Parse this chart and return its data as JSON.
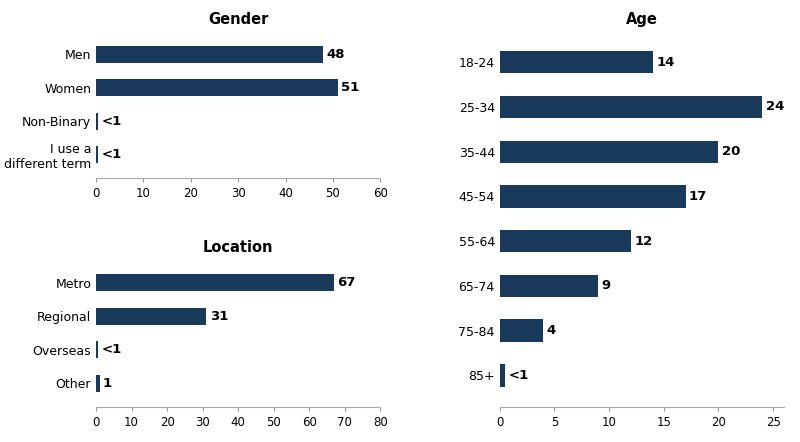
{
  "bar_color": "#1a3a5c",
  "background_color": "#ffffff",
  "title_fontsize": 10.5,
  "label_fontsize": 9,
  "tick_fontsize": 8.5,
  "value_fontsize": 9.5,
  "gender": {
    "title": "Gender",
    "categories": [
      "Men",
      "Women",
      "Non-Binary",
      "I use a\ndifferent term"
    ],
    "values": [
      48,
      51,
      0.5,
      0.5
    ],
    "labels": [
      "48",
      "51",
      "<1",
      "<1"
    ],
    "xlim": [
      0,
      60
    ],
    "xticks": [
      0,
      10,
      20,
      30,
      40,
      50,
      60
    ]
  },
  "location": {
    "title": "Location",
    "categories": [
      "Metro",
      "Regional",
      "Overseas",
      "Other"
    ],
    "values": [
      67,
      31,
      0.5,
      1
    ],
    "labels": [
      "67",
      "31",
      "<1",
      "1"
    ],
    "xlim": [
      0,
      80
    ],
    "xticks": [
      0,
      10,
      20,
      30,
      40,
      50,
      60,
      70,
      80
    ]
  },
  "age": {
    "title": "Age",
    "categories": [
      "18-24",
      "25-34",
      "35-44",
      "45-54",
      "55-64",
      "65-74",
      "75-84",
      "85+"
    ],
    "values": [
      14,
      24,
      20,
      17,
      12,
      9,
      4,
      0.5
    ],
    "labels": [
      "14",
      "24",
      "20",
      "17",
      "12",
      "9",
      "4",
      "<1"
    ],
    "xlim": [
      0,
      26
    ],
    "xticks": [
      0,
      5,
      10,
      15,
      20,
      25
    ]
  }
}
